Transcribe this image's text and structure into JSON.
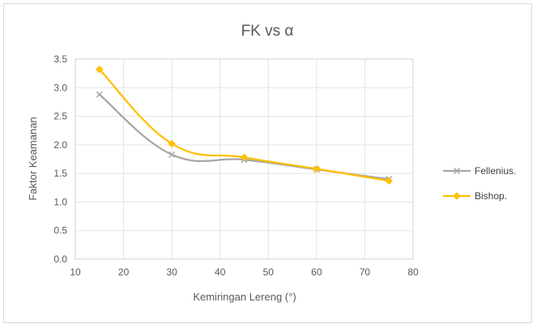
{
  "chart_data": {
    "type": "line",
    "title": "FK vs α",
    "xlabel": "Kemiringan Lereng (°)",
    "ylabel": "Faktor Keamanan",
    "xlim": [
      10,
      80
    ],
    "ylim": [
      0,
      3.5
    ],
    "xticks": [
      "10",
      "20",
      "30",
      "40",
      "50",
      "60",
      "70",
      "80"
    ],
    "yticks": [
      "0.0",
      "0.5",
      "1.0",
      "1.5",
      "2.0",
      "2.5",
      "3.0",
      "3.5"
    ],
    "grid": "vertical and horizontal",
    "legend_position": "right",
    "smooth": true,
    "series": [
      {
        "name": "Fellenius.",
        "color": "#a6a6a6",
        "marker": "x",
        "x": [
          15,
          30,
          45,
          60,
          75
        ],
        "y": [
          2.88,
          1.83,
          1.74,
          1.57,
          1.4
        ]
      },
      {
        "name": "Bishop.",
        "color": "#ffc000",
        "marker": "diamond",
        "x": [
          15,
          30,
          45,
          60,
          75
        ],
        "y": [
          3.32,
          2.02,
          1.78,
          1.58,
          1.37
        ]
      }
    ]
  }
}
